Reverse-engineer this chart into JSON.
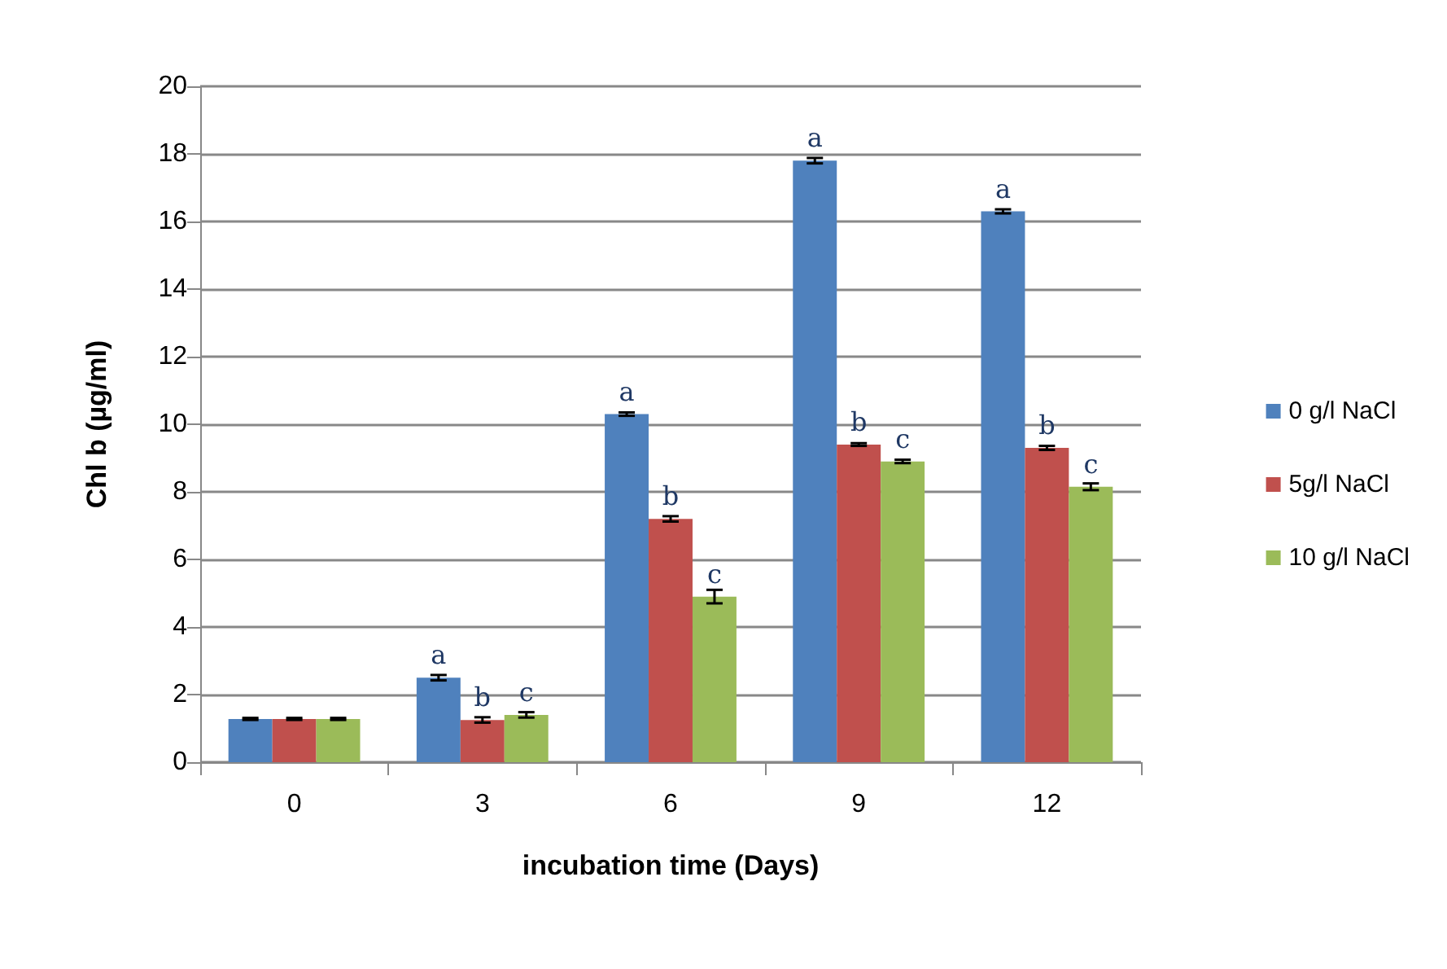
{
  "chart_data": {
    "type": "bar",
    "xlabel": "incubation time (Days)",
    "ylabel": "Chl b (µg/ml)",
    "categories": [
      "0",
      "3",
      "6",
      "9",
      "12"
    ],
    "series": [
      {
        "name": "0 g/l NaCl",
        "color": "#4f81bd",
        "values": [
          1.28,
          2.5,
          10.3,
          17.8,
          16.3
        ],
        "errors": [
          0.03,
          0.08,
          0.05,
          0.08,
          0.06
        ],
        "value_labels": [
          null,
          "a",
          "a",
          "a",
          "a"
        ]
      },
      {
        "name": "5g/l NaCl",
        "color": "#c0504d",
        "values": [
          1.28,
          1.25,
          7.2,
          9.4,
          9.3
        ],
        "errors": [
          0.03,
          0.08,
          0.08,
          0.04,
          0.06
        ],
        "value_labels": [
          null,
          "b",
          "b",
          "b",
          "b"
        ]
      },
      {
        "name": "10 g/l NaCl",
        "color": "#9bbb59",
        "values": [
          1.28,
          1.4,
          4.9,
          8.9,
          8.15
        ],
        "errors": [
          0.03,
          0.08,
          0.2,
          0.05,
          0.1
        ],
        "value_labels": [
          null,
          "c",
          "c",
          "c",
          "c"
        ]
      }
    ],
    "ylim": [
      0,
      20
    ],
    "yticks": [
      0,
      2,
      4,
      6,
      8,
      10,
      12,
      14,
      16,
      18,
      20
    ],
    "grid": "y",
    "legend": "right"
  }
}
